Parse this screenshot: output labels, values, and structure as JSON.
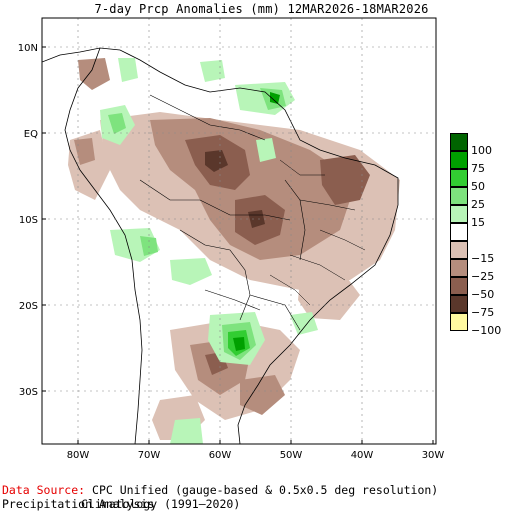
{
  "title": "7-day Prcp Anomalies (mm) 12MAR2026-18MAR2026",
  "y_axis_labels": [
    "10N",
    "EQ",
    "10S",
    "20S",
    "30S"
  ],
  "x_axis_labels": [
    "80W",
    "70W",
    "60W",
    "50W",
    "40W",
    "30W"
  ],
  "legend": {
    "items": [
      {
        "label": "100",
        "color": "#006400"
      },
      {
        "label": "75",
        "color": "#00a000"
      },
      {
        "label": "50",
        "color": "#32cd32"
      },
      {
        "label": "25",
        "color": "#7ee37e"
      },
      {
        "label": "15",
        "color": "#b8f5b8"
      },
      {
        "label": "",
        "color": "#ffffff"
      },
      {
        "label": "−15",
        "color": "#dcc1b5"
      },
      {
        "label": "−25",
        "color": "#b58d7d"
      },
      {
        "label": "−50",
        "color": "#8b5e4f"
      },
      {
        "label": "−75",
        "color": "#5a372b"
      },
      {
        "label": "−100",
        "color": "#fffaa0"
      }
    ]
  },
  "footer": {
    "source_label": "Data Source:",
    "source_text": "CPC Unified (gauge-based & 0.5x0.5 deg resolution) Precipitation Analysis",
    "climatology": "Climatology (1991–2020)"
  },
  "colors": {
    "dry_light": "#dcc1b5",
    "dry_mid": "#b58d7d",
    "dry_dark": "#8b5e4f",
    "dry_darkest": "#5a372b",
    "wet_light": "#b8f5b8",
    "wet_mid": "#7ee37e",
    "wet_strong": "#32cd32",
    "wet_darker": "#00a000"
  }
}
